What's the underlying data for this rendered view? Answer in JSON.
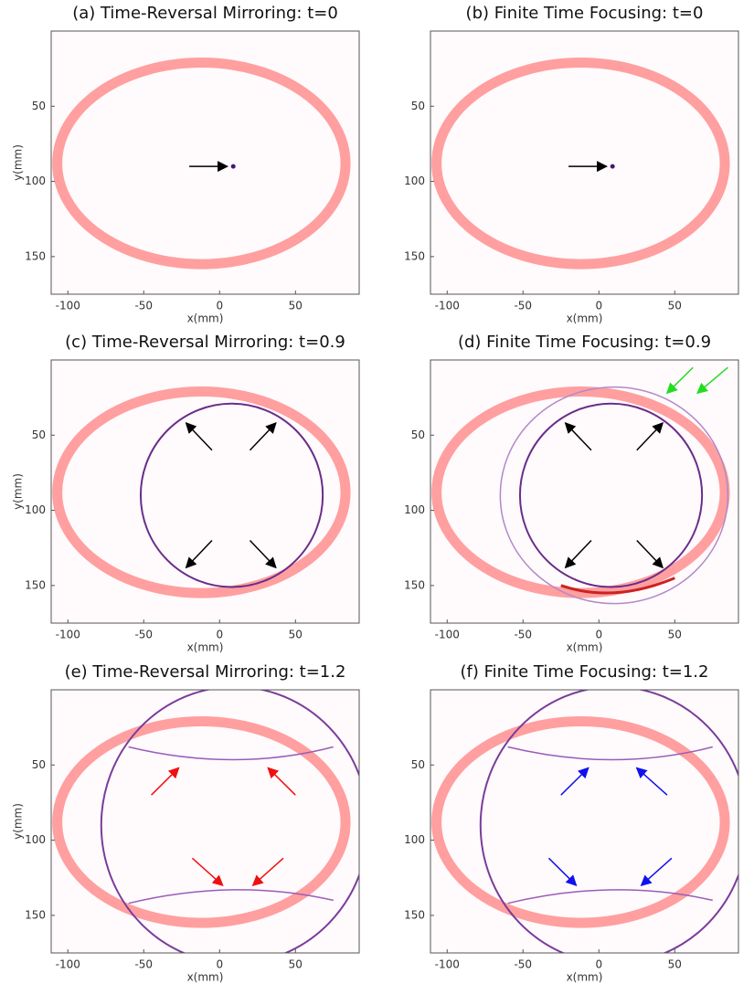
{
  "chart_data": [
    {
      "type": "image",
      "title": "(a) Time-Reversal Mirroring: t=0",
      "xlabel": "x(mm)",
      "ylabel": "y(mm)",
      "xlim": [
        -111,
        92
      ],
      "ylim": [
        0,
        175
      ],
      "y_inverted": true,
      "xticks": [
        -100,
        -50,
        0,
        50
      ],
      "yticks": [
        50,
        100,
        150
      ]
    },
    {
      "type": "image",
      "title": "(b) Finite Time Focusing: t=0",
      "xlabel": "x(mm)",
      "xlim": [
        -111,
        92
      ],
      "ylim": [
        0,
        175
      ],
      "y_inverted": true,
      "xticks": [
        -100,
        -50,
        0,
        50
      ],
      "yticks": [
        50,
        100,
        150
      ]
    },
    {
      "type": "image",
      "title": "(c) Time-Reversal Mirroring: t=0.9",
      "xlabel": "x(mm)",
      "ylabel": "y(mm)",
      "xlim": [
        -111,
        92
      ],
      "ylim": [
        0,
        175
      ],
      "y_inverted": true,
      "xticks": [
        -100,
        -50,
        0,
        50
      ],
      "yticks": [
        50,
        100,
        150
      ]
    },
    {
      "type": "image",
      "title": "(d) Finite Time Focusing: t=0.9",
      "xlabel": "x(mm)",
      "xlim": [
        -111,
        92
      ],
      "ylim": [
        0,
        175
      ],
      "y_inverted": true,
      "xticks": [
        -100,
        -50,
        0,
        50
      ],
      "yticks": [
        50,
        100,
        150
      ]
    },
    {
      "type": "image",
      "title": "(e) Time-Reversal Mirroring: t=1.2",
      "xlabel": "x(mm)",
      "ylabel": "y(mm)",
      "xlim": [
        -111,
        92
      ],
      "ylim": [
        0,
        175
      ],
      "y_inverted": true,
      "xticks": [
        -100,
        -50,
        0,
        50
      ],
      "yticks": [
        50,
        100,
        150
      ]
    },
    {
      "type": "image",
      "title": "(f) Finite Time Focusing: t=1.2",
      "xlabel": "x(mm)",
      "xlim": [
        -111,
        92
      ],
      "ylim": [
        0,
        175
      ],
      "y_inverted": true,
      "xticks": [
        -100,
        -50,
        0,
        50
      ],
      "yticks": [
        50,
        100,
        150
      ]
    }
  ]
}
